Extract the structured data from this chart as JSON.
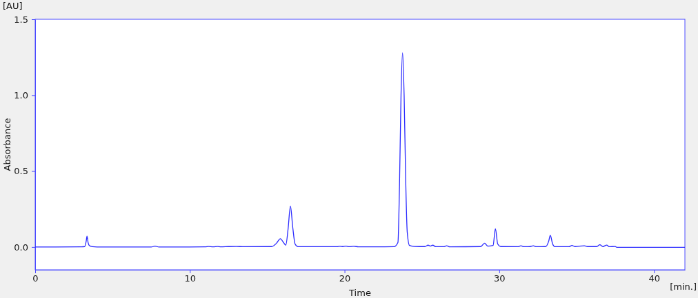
{
  "chart_data": {
    "type": "line",
    "xlabel": "Time",
    "ylabel": "Absorbance",
    "annotations": [
      "[AU]",
      "[min.]"
    ],
    "xlim": [
      0,
      42
    ],
    "ylim": [
      -0.15,
      1.5
    ],
    "xticks": [
      0,
      10,
      20,
      30,
      40
    ],
    "yticks": [
      {
        "value": 0,
        "label": "0.0"
      },
      {
        "value": 0.5,
        "label": "0.5"
      },
      {
        "value": 1,
        "label": "1.0"
      },
      {
        "value": 1.5,
        "label": "1.5"
      }
    ],
    "marker": "none",
    "line_style": "solid",
    "series": [
      {
        "color": "#2a2aff",
        "x": [
          0,
          3.0,
          3.2,
          3.3,
          3.35,
          3.42,
          3.5,
          3.7,
          4.0,
          7.5,
          7.75,
          8.0,
          11.0,
          11.2,
          11.5,
          11.8,
          12.0,
          12.5,
          13.0,
          13.5,
          15.3,
          15.6,
          15.85,
          16.05,
          16.2,
          16.35,
          16.5,
          16.65,
          16.8,
          17.0,
          19.5,
          19.7,
          19.9,
          20.1,
          20.3,
          20.6,
          20.9,
          23.2,
          23.45,
          23.55,
          23.65,
          23.75,
          23.85,
          23.95,
          24.05,
          24.2,
          24.5,
          25.2,
          25.4,
          25.55,
          25.7,
          25.9,
          26.4,
          26.6,
          26.8,
          28.8,
          29.05,
          29.25,
          29.6,
          29.75,
          29.9,
          30.1,
          31.2,
          31.4,
          31.6,
          32.0,
          32.2,
          32.4,
          33.0,
          33.2,
          33.3,
          33.45,
          33.6,
          34.5,
          34.7,
          34.9,
          35.5,
          35.7,
          36.3,
          36.5,
          36.7,
          36.95,
          37.1,
          37.5,
          37.6,
          42
        ],
        "values": [
          0,
          0.001,
          0.003,
          0.04,
          0.072,
          0.03,
          0.01,
          0.002,
          0,
          0,
          0.006,
          0,
          0.001,
          0.004,
          0.001,
          0.004,
          0.001,
          0.003,
          0.004,
          0.002,
          0.003,
          0.025,
          0.055,
          0.03,
          0.012,
          0.12,
          0.27,
          0.13,
          0.02,
          0.002,
          0.002,
          0.005,
          0.003,
          0.006,
          0.002,
          0.005,
          0.001,
          0.002,
          0.03,
          0.4,
          1.0,
          1.28,
          1.0,
          0.45,
          0.1,
          0.01,
          0.004,
          0.003,
          0.012,
          0.006,
          0.012,
          0.002,
          0.002,
          0.008,
          0.001,
          0.003,
          0.025,
          0.006,
          0.01,
          0.12,
          0.02,
          0.003,
          0.002,
          0.008,
          0.002,
          0.003,
          0.008,
          0.002,
          0.003,
          0.04,
          0.077,
          0.02,
          0.002,
          0.002,
          0.01,
          0.003,
          0.008,
          0.003,
          0.003,
          0.015,
          0.003,
          0.013,
          0.002,
          0.004,
          -0.002,
          -0.002
        ]
      }
    ]
  }
}
